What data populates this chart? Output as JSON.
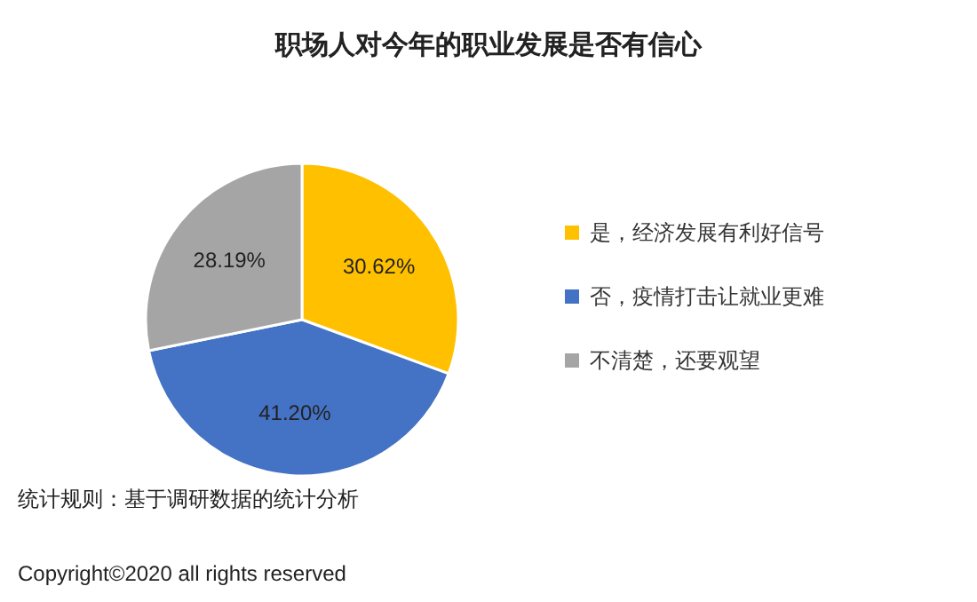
{
  "chart_data": {
    "type": "pie",
    "title": "职场人对今年的职业发展是否有信心",
    "categories": [
      "是，经济发展有利好信号",
      "否，疫情打击让就业更难",
      "不清楚，还要观望"
    ],
    "values": [
      30.62,
      41.2,
      28.19
    ],
    "colors": [
      "#ffc000",
      "#4472c4",
      "#a5a5a5"
    ],
    "value_labels": [
      "30.62%",
      "41.20%",
      "28.19%"
    ],
    "legend": "right",
    "annotations": [
      "统计规则：基于调研数据的统计分析",
      "Copyright©2020 all rights reserved"
    ]
  }
}
